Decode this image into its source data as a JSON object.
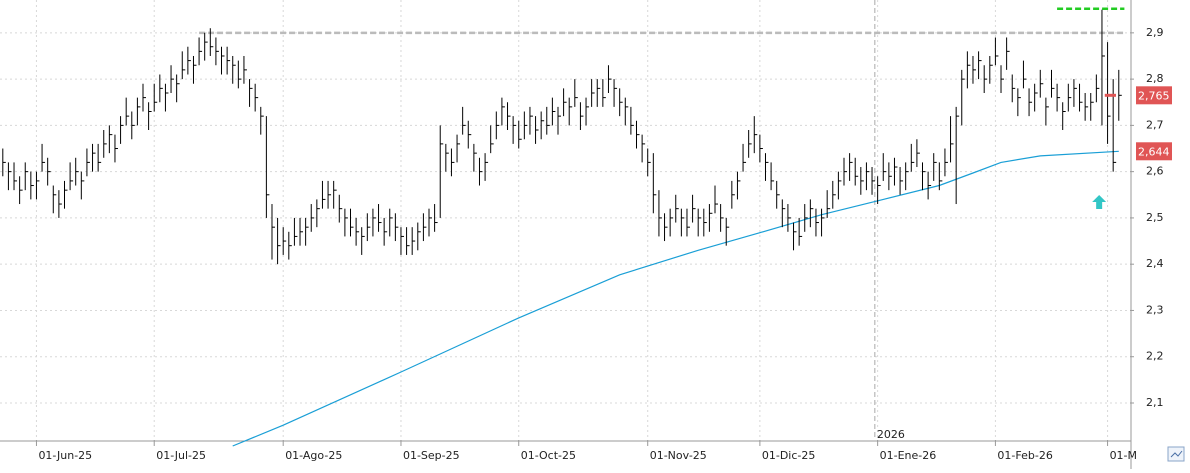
{
  "chart_data": {
    "type": "ohlc",
    "color": "#000000",
    "close": [
      2.62,
      2.6,
      2.58,
      2.56,
      2.6,
      2.57,
      2.58,
      2.62,
      2.6,
      2.55,
      2.53,
      2.56,
      2.58,
      2.6,
      2.58,
      2.62,
      2.64,
      2.62,
      2.66,
      2.68,
      2.65,
      2.7,
      2.72,
      2.7,
      2.74,
      2.76,
      2.73,
      2.75,
      2.78,
      2.77,
      2.8,
      2.79,
      2.82,
      2.84,
      2.83,
      2.86,
      2.88,
      2.87,
      2.86,
      2.85,
      2.84,
      2.83,
      2.8,
      2.82,
      2.78,
      2.76,
      2.72,
      2.55,
      2.48,
      2.44,
      2.45,
      2.44,
      2.46,
      2.47,
      2.48,
      2.5,
      2.52,
      2.54,
      2.55,
      2.56,
      2.52,
      2.5,
      2.48,
      2.47,
      2.46,
      2.48,
      2.5,
      2.49,
      2.47,
      2.5,
      2.48,
      2.46,
      2.44,
      2.45,
      2.47,
      2.48,
      2.5,
      2.49,
      2.66,
      2.64,
      2.62,
      2.66,
      2.7,
      2.68,
      2.64,
      2.6,
      2.62,
      2.66,
      2.7,
      2.74,
      2.72,
      2.7,
      2.67,
      2.7,
      2.72,
      2.69,
      2.71,
      2.7,
      2.73,
      2.72,
      2.75,
      2.74,
      2.76,
      2.72,
      2.74,
      2.77,
      2.78,
      2.76,
      2.8,
      2.78,
      2.75,
      2.74,
      2.7,
      2.68,
      2.66,
      2.62,
      2.55,
      2.5,
      2.48,
      2.5,
      2.52,
      2.5,
      2.48,
      2.52,
      2.5,
      2.49,
      2.51,
      2.53,
      2.5,
      2.48,
      2.55,
      2.58,
      2.62,
      2.66,
      2.68,
      2.65,
      2.62,
      2.58,
      2.55,
      2.52,
      2.5,
      2.47,
      2.46,
      2.5,
      2.52,
      2.49,
      2.5,
      2.52,
      2.55,
      2.58,
      2.6,
      2.62,
      2.59,
      2.58,
      2.6,
      2.58,
      2.57,
      2.6,
      2.59,
      2.61,
      2.58,
      2.6,
      2.62,
      2.64,
      2.6,
      2.57,
      2.62,
      2.58,
      2.62,
      2.66,
      2.72,
      2.8,
      2.83,
      2.82,
      2.84,
      2.8,
      2.83,
      2.85,
      2.8,
      2.86,
      2.78,
      2.76,
      2.8,
      2.75,
      2.77,
      2.79,
      2.74,
      2.78,
      2.76,
      2.73,
      2.76,
      2.78,
      2.75,
      2.74,
      2.75,
      2.78,
      2.85,
      2.72,
      2.62,
      2.765
    ],
    "high": [
      2.65,
      2.62,
      2.62,
      2.59,
      2.62,
      2.6,
      2.6,
      2.66,
      2.63,
      2.57,
      2.56,
      2.58,
      2.62,
      2.63,
      2.6,
      2.65,
      2.66,
      2.66,
      2.69,
      2.7,
      2.68,
      2.72,
      2.76,
      2.73,
      2.76,
      2.79,
      2.75,
      2.79,
      2.81,
      2.79,
      2.83,
      2.81,
      2.86,
      2.87,
      2.85,
      2.89,
      2.9,
      2.91,
      2.89,
      2.87,
      2.87,
      2.85,
      2.84,
      2.85,
      2.8,
      2.79,
      2.74,
      2.72,
      2.53,
      2.5,
      2.48,
      2.47,
      2.5,
      2.5,
      2.5,
      2.53,
      2.54,
      2.58,
      2.58,
      2.58,
      2.55,
      2.52,
      2.52,
      2.5,
      2.48,
      2.51,
      2.52,
      2.53,
      2.5,
      2.52,
      2.51,
      2.48,
      2.48,
      2.48,
      2.49,
      2.51,
      2.52,
      2.53,
      2.7,
      2.66,
      2.65,
      2.68,
      2.74,
      2.71,
      2.66,
      2.63,
      2.64,
      2.7,
      2.73,
      2.76,
      2.75,
      2.72,
      2.71,
      2.73,
      2.74,
      2.72,
      2.73,
      2.74,
      2.76,
      2.74,
      2.78,
      2.76,
      2.8,
      2.75,
      2.76,
      2.8,
      2.8,
      2.8,
      2.83,
      2.8,
      2.78,
      2.76,
      2.74,
      2.71,
      2.68,
      2.65,
      2.64,
      2.56,
      2.51,
      2.52,
      2.55,
      2.52,
      2.52,
      2.55,
      2.52,
      2.52,
      2.53,
      2.57,
      2.53,
      2.5,
      2.58,
      2.6,
      2.66,
      2.69,
      2.72,
      2.68,
      2.64,
      2.62,
      2.58,
      2.54,
      2.53,
      2.49,
      2.5,
      2.53,
      2.54,
      2.52,
      2.52,
      2.56,
      2.58,
      2.6,
      2.63,
      2.64,
      2.63,
      2.61,
      2.62,
      2.61,
      2.59,
      2.64,
      2.62,
      2.63,
      2.61,
      2.62,
      2.66,
      2.67,
      2.62,
      2.6,
      2.64,
      2.62,
      2.65,
      2.72,
      2.74,
      2.82,
      2.86,
      2.85,
      2.86,
      2.83,
      2.85,
      2.89,
      2.83,
      2.89,
      2.81,
      2.78,
      2.84,
      2.78,
      2.79,
      2.82,
      2.76,
      2.82,
      2.79,
      2.75,
      2.79,
      2.8,
      2.79,
      2.77,
      2.77,
      2.81,
      2.95,
      2.88,
      2.8,
      2.82
    ],
    "low": [
      2.59,
      2.56,
      2.56,
      2.53,
      2.56,
      2.54,
      2.54,
      2.6,
      2.57,
      2.51,
      2.5,
      2.52,
      2.56,
      2.57,
      2.54,
      2.59,
      2.6,
      2.6,
      2.63,
      2.64,
      2.62,
      2.66,
      2.7,
      2.67,
      2.7,
      2.73,
      2.69,
      2.73,
      2.75,
      2.73,
      2.77,
      2.75,
      2.8,
      2.81,
      2.79,
      2.83,
      2.84,
      2.85,
      2.83,
      2.81,
      2.81,
      2.79,
      2.78,
      2.79,
      2.74,
      2.73,
      2.68,
      2.5,
      2.41,
      2.4,
      2.42,
      2.41,
      2.44,
      2.44,
      2.44,
      2.47,
      2.48,
      2.52,
      2.52,
      2.52,
      2.49,
      2.46,
      2.46,
      2.44,
      2.42,
      2.45,
      2.46,
      2.47,
      2.44,
      2.46,
      2.45,
      2.42,
      2.42,
      2.42,
      2.43,
      2.45,
      2.46,
      2.47,
      2.5,
      2.6,
      2.59,
      2.62,
      2.68,
      2.65,
      2.6,
      2.57,
      2.58,
      2.64,
      2.67,
      2.7,
      2.69,
      2.66,
      2.65,
      2.67,
      2.68,
      2.66,
      2.67,
      2.68,
      2.7,
      2.68,
      2.72,
      2.7,
      2.74,
      2.69,
      2.7,
      2.74,
      2.74,
      2.74,
      2.77,
      2.74,
      2.72,
      2.7,
      2.68,
      2.65,
      2.62,
      2.59,
      2.51,
      2.46,
      2.45,
      2.46,
      2.49,
      2.46,
      2.46,
      2.49,
      2.46,
      2.46,
      2.47,
      2.51,
      2.47,
      2.44,
      2.52,
      2.54,
      2.6,
      2.63,
      2.64,
      2.62,
      2.58,
      2.56,
      2.52,
      2.48,
      2.47,
      2.43,
      2.44,
      2.47,
      2.48,
      2.46,
      2.46,
      2.5,
      2.52,
      2.54,
      2.57,
      2.58,
      2.57,
      2.55,
      2.56,
      2.55,
      2.53,
      2.58,
      2.56,
      2.57,
      2.55,
      2.56,
      2.6,
      2.61,
      2.56,
      2.54,
      2.58,
      2.56,
      2.59,
      2.62,
      2.53,
      2.7,
      2.78,
      2.79,
      2.8,
      2.77,
      2.79,
      2.83,
      2.77,
      2.82,
      2.75,
      2.72,
      2.78,
      2.72,
      2.73,
      2.76,
      2.7,
      2.76,
      2.73,
      2.69,
      2.73,
      2.74,
      2.73,
      2.71,
      2.71,
      2.75,
      2.7,
      2.66,
      2.6,
      2.71
    ],
    "ma": {
      "color": "#1a9fd6",
      "x": [
        41,
        50,
        71,
        92,
        110,
        124,
        135,
        146,
        157,
        167,
        173,
        178,
        185,
        199
      ],
      "values": [
        2.007,
        2.052,
        2.167,
        2.284,
        2.377,
        2.43,
        2.468,
        2.507,
        2.54,
        2.57,
        2.597,
        2.62,
        2.634,
        2.644
      ]
    },
    "xlim": [
      -0.5,
      201
    ],
    "ylim": [
      2.02,
      2.971
    ],
    "grid": true,
    "xticks": [
      {
        "value": 6,
        "label": "01-Jun-25"
      },
      {
        "value": 27,
        "label": "01-Jul-25"
      },
      {
        "value": 50,
        "label": "01-Ago-25"
      },
      {
        "value": 71,
        "label": "01-Sep-25"
      },
      {
        "value": 92,
        "label": "01-Oct-25"
      },
      {
        "value": 115,
        "label": "01-Nov-25"
      },
      {
        "value": 135,
        "label": "01-Dic-25"
      },
      {
        "value": 156,
        "label": "01-Ene-26"
      },
      {
        "value": 177,
        "label": "01-Feb-26"
      },
      {
        "value": 197,
        "label": "01-M"
      }
    ],
    "yticks": [
      {
        "value": 2.1,
        "label": "2,1"
      },
      {
        "value": 2.2,
        "label": "2,2"
      },
      {
        "value": 2.3,
        "label": "2,3"
      },
      {
        "value": 2.4,
        "label": "2,4"
      },
      {
        "value": 2.5,
        "label": "2,5"
      },
      {
        "value": 2.6,
        "label": "2,6"
      },
      {
        "value": 2.7,
        "label": "2,7"
      },
      {
        "value": 2.8,
        "label": "2,8"
      },
      {
        "value": 2.9,
        "label": "2,9"
      }
    ],
    "year_marker": {
      "value": 155.5,
      "label": "2026"
    },
    "levels": [
      {
        "value": 2.9,
        "color": "#bbbbbb",
        "x": [
          35,
          200
        ]
      },
      {
        "value": 2.952,
        "color": "#22cc22",
        "x": [
          188,
          200
        ]
      }
    ],
    "price_labels": [
      {
        "value": 2.765,
        "label": "2,765",
        "color": "#e05555"
      },
      {
        "value": 2.644,
        "label": "2,644",
        "color": "#e05555"
      }
    ],
    "arrow": {
      "x": 195.5,
      "value": 2.53,
      "color": "#33c6c6"
    }
  }
}
